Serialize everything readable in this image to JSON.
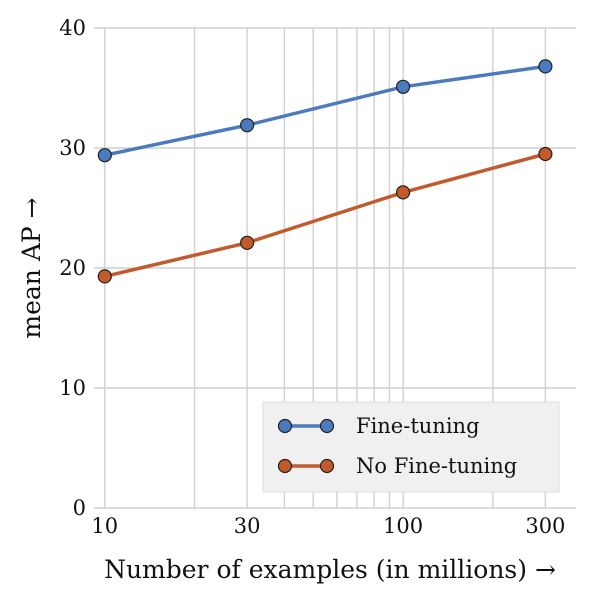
{
  "chart_data": {
    "type": "line",
    "x_scale": "log",
    "x": [
      10,
      30,
      100,
      300
    ],
    "xticks": [
      "10",
      "30",
      "100",
      "300"
    ],
    "yticks": [
      "0",
      "10",
      "20",
      "30",
      "40"
    ],
    "xlim": [
      9.2,
      380
    ],
    "ylim": [
      0,
      40
    ],
    "xlabel": "Number of examples (in millions) →",
    "ylabel": "mean AP →",
    "grid": true,
    "legend_position": "bottom-right",
    "series": [
      {
        "name": "Fine-tuning",
        "color": "#4a7abf",
        "values": [
          29.4,
          31.9,
          35.1,
          36.8
        ]
      },
      {
        "name": "No Fine-tuning",
        "color": "#c25a2c",
        "values": [
          19.3,
          22.1,
          26.3,
          29.5
        ]
      }
    ]
  }
}
